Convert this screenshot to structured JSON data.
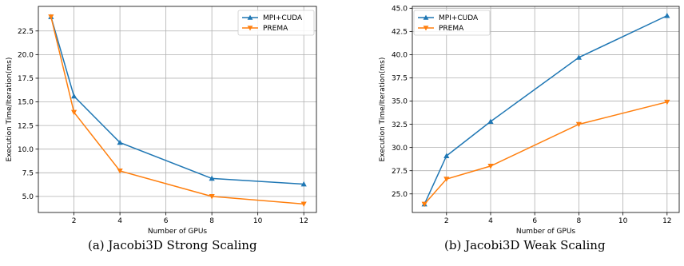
{
  "chart_data": [
    {
      "type": "line",
      "caption": "(a) Jacobi3D Strong Scaling",
      "xlabel": "Number of GPUs",
      "ylabel": "Execution Time/Iteration(ms)",
      "x": [
        1,
        2,
        4,
        8,
        12
      ],
      "xticks": [
        2,
        4,
        6,
        8,
        10,
        12
      ],
      "xtick_labels": [
        "2",
        "4",
        "6",
        "8",
        "10",
        "12"
      ],
      "xlim": [
        0.45,
        12.55
      ],
      "yticks": [
        5.0,
        7.5,
        10.0,
        12.5,
        15.0,
        17.5,
        20.0,
        22.5
      ],
      "ytick_labels": [
        "5.0",
        "7.5",
        "10.0",
        "12.5",
        "15.0",
        "17.5",
        "20.0",
        "22.5"
      ],
      "ylim": [
        3.3,
        25.1
      ],
      "grid": true,
      "legend_position": "top-right",
      "series": [
        {
          "name": "MPI+CUDA",
          "color": "#1f77b4",
          "marker": "triangle-up",
          "values": [
            24.0,
            15.6,
            10.7,
            6.9,
            6.3
          ]
        },
        {
          "name": "PREMA",
          "color": "#ff7f0e",
          "marker": "triangle-down",
          "values": [
            24.0,
            13.9,
            7.7,
            5.0,
            4.2
          ]
        }
      ]
    },
    {
      "type": "line",
      "caption": "(b) Jacobi3D Weak Scaling",
      "xlabel": "Number of GPUs",
      "ylabel": "Execution Time/Iteration(ms)",
      "x": [
        1,
        2,
        4,
        8,
        12
      ],
      "xticks": [
        2,
        4,
        6,
        8,
        10,
        12
      ],
      "xtick_labels": [
        "2",
        "4",
        "6",
        "8",
        "10",
        "12"
      ],
      "xlim": [
        0.45,
        12.55
      ],
      "yticks": [
        25.0,
        27.5,
        30.0,
        32.5,
        35.0,
        37.5,
        40.0,
        42.5,
        45.0
      ],
      "ytick_labels": [
        "25.0",
        "27.5",
        "30.0",
        "32.5",
        "35.0",
        "37.5",
        "40.0",
        "42.5",
        "45.0"
      ],
      "ylim": [
        23.0,
        45.2
      ],
      "grid": true,
      "legend_position": "top-left",
      "series": [
        {
          "name": "MPI+CUDA",
          "color": "#1f77b4",
          "marker": "triangle-up",
          "values": [
            23.9,
            29.1,
            32.8,
            39.7,
            44.2
          ]
        },
        {
          "name": "PREMA",
          "color": "#ff7f0e",
          "marker": "triangle-down",
          "values": [
            23.9,
            26.6,
            28.0,
            32.5,
            34.9
          ]
        }
      ]
    }
  ]
}
